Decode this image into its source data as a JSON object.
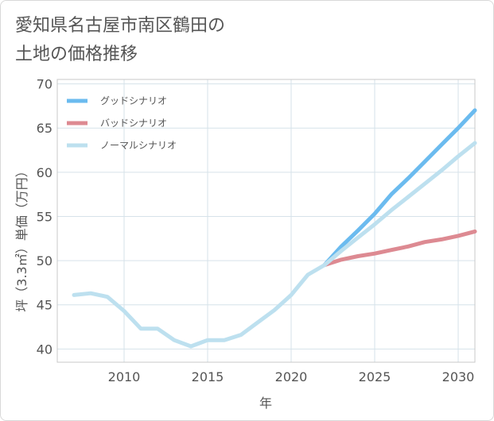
{
  "title_line1": "愛知県名古屋市南区鶴田の",
  "title_line2": "土地の価格推移",
  "chart_data": {
    "type": "line",
    "xlabel": "年",
    "ylabel": "坪（3.3㎡）単価（万円）",
    "xlim": [
      2006,
      2031
    ],
    "ylim": [
      38.5,
      70.5
    ],
    "xticks": [
      2010,
      2015,
      2020,
      2025,
      2030
    ],
    "yticks": [
      40,
      45,
      50,
      55,
      60,
      65,
      70
    ],
    "grid": true,
    "legend_position": "top-left",
    "series": [
      {
        "name": "グッドシナリオ",
        "color": "#6bbbef",
        "x": [
          2022,
          2023,
          2024,
          2025,
          2026,
          2027,
          2028,
          2029,
          2030,
          2031
        ],
        "y": [
          49.5,
          51.6,
          53.4,
          55.3,
          57.5,
          59.3,
          61.2,
          63.1,
          65.0,
          67.0
        ]
      },
      {
        "name": "バッドシナリオ",
        "color": "#dd8a92",
        "x": [
          2022,
          2023,
          2024,
          2025,
          2026,
          2027,
          2028,
          2029,
          2030,
          2031
        ],
        "y": [
          49.5,
          50.1,
          50.5,
          50.8,
          51.2,
          51.6,
          52.1,
          52.4,
          52.8,
          53.3
        ]
      },
      {
        "name": "ノーマルシナリオ",
        "color": "#bde0ef",
        "x": [
          2007,
          2008,
          2009,
          2010,
          2011,
          2012,
          2013,
          2014,
          2015,
          2016,
          2017,
          2018,
          2019,
          2020,
          2021,
          2022,
          2023,
          2024,
          2025,
          2026,
          2027,
          2028,
          2029,
          2030,
          2031
        ],
        "y": [
          46.1,
          46.3,
          45.9,
          44.3,
          42.3,
          42.3,
          41.0,
          40.3,
          41.0,
          41.0,
          41.6,
          43.0,
          44.4,
          46.1,
          48.4,
          49.5,
          51.1,
          52.6,
          54.1,
          55.7,
          57.2,
          58.7,
          60.2,
          61.8,
          63.3
        ]
      }
    ]
  }
}
